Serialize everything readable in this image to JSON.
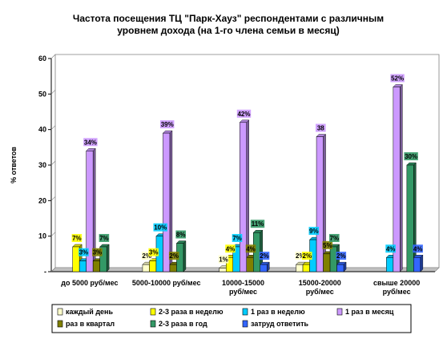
{
  "chart_data": {
    "type": "bar",
    "title_lines": [
      "Частота посещения ТЦ \"Парк-Хауз\" респондентами с различным",
      "уровнем дохода (на 1-го члена семьи в месяц)"
    ],
    "ylabel": "% ответов",
    "ylim": [
      0,
      60
    ],
    "yticks": [
      0,
      10,
      20,
      30,
      40,
      50,
      60
    ],
    "grid": false,
    "legend_position": "bottom",
    "categories": [
      [
        "до 5000 руб/мес"
      ],
      [
        "5000-10000 руб/мес"
      ],
      [
        "10000-15000",
        "руб/мес"
      ],
      [
        "15000-20000",
        "руб/мес"
      ],
      [
        "свыше 20000",
        "руб/мес"
      ]
    ],
    "series": [
      {
        "name": "каждый день",
        "color": "#ffffcc",
        "values": [
          0,
          2,
          1,
          2,
          0
        ],
        "labels": [
          "",
          "2%",
          "1%",
          "2%",
          ""
        ]
      },
      {
        "name": "2-3 раза в неделю",
        "color": "#ffff00",
        "values": [
          7,
          3,
          4,
          2,
          0
        ],
        "labels": [
          "7%",
          "3%",
          "4%",
          "2%",
          ""
        ]
      },
      {
        "name": "1 раз в неделю",
        "color": "#00ccff",
        "values": [
          3,
          10,
          7,
          9,
          4
        ],
        "labels": [
          "3%",
          "10%",
          "7%",
          "9%",
          "4%"
        ]
      },
      {
        "name": "1 раз в месяц",
        "color": "#cc99ff",
        "values": [
          34,
          39,
          42,
          38,
          52
        ],
        "labels": [
          "34%",
          "39%",
          "42%",
          "38",
          "52%"
        ]
      },
      {
        "name": "раз в квартал",
        "color": "#808000",
        "values": [
          3,
          2,
          4,
          5,
          0
        ],
        "labels": [
          "3%",
          "2%",
          "4%",
          "5%",
          ""
        ]
      },
      {
        "name": "2-3 раза в год",
        "color": "#339966",
        "values": [
          7,
          8,
          11,
          7,
          30
        ],
        "labels": [
          "7%",
          "8%",
          "11%",
          "7%",
          "30%"
        ]
      },
      {
        "name": "затруд ответить",
        "color": "#3366ff",
        "values": [
          0,
          0,
          2,
          2,
          4
        ],
        "labels": [
          "",
          "",
          "2%",
          "2%",
          "4%"
        ]
      }
    ]
  }
}
